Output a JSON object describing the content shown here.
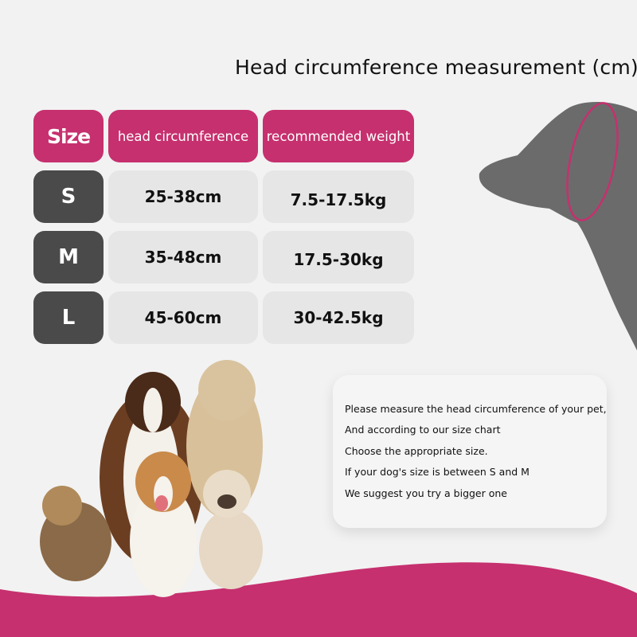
{
  "title": "Head circumference measurement (cm)",
  "colors": {
    "accent": "#c6306e",
    "size_cell": "#4a4a4a",
    "value_cell": "#e6e6e6",
    "background": "#f2f2f2",
    "silhouette": "#6b6b6b"
  },
  "table": {
    "headers": [
      "Size",
      "head circumference",
      "recommended weight"
    ],
    "rows": [
      {
        "size": "S",
        "head": "25-38cm",
        "weight": "7.5-17.5kg"
      },
      {
        "size": "M",
        "head": "35-48cm",
        "weight": "17.5-30kg"
      },
      {
        "size": "L",
        "head": "45-60cm",
        "weight": "30-42.5kg"
      }
    ]
  },
  "note": {
    "lines": [
      "Please measure the head circumference of your pet,",
      "And according to our size chart",
      "Choose the appropriate size.",
      "If your dog's size is between S and M",
      "We suggest you try a bigger one"
    ]
  },
  "images": {
    "silhouette": "dog-head-silhouette",
    "photo": "group-of-dogs"
  }
}
